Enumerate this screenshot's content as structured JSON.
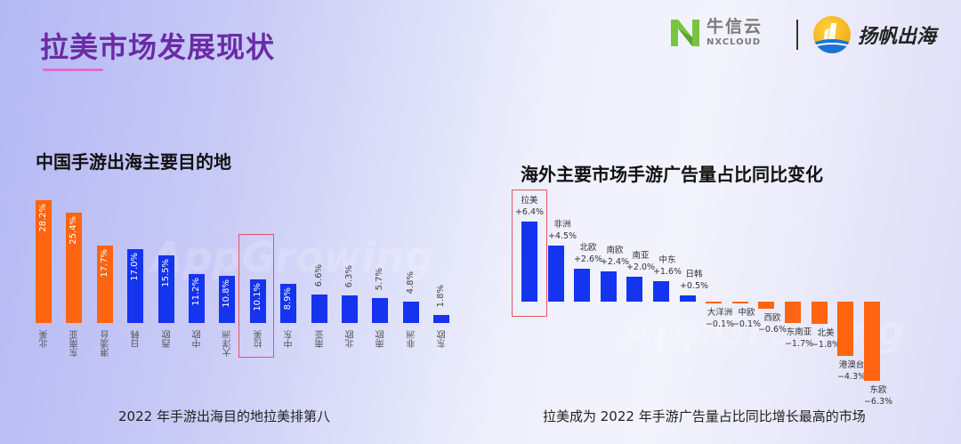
{
  "header": {
    "page_title": "拉美市场发展现状",
    "logos": [
      {
        "name": "牛信云",
        "subtitle": "NXCLOUD",
        "icon": "nxcloud-logo-icon"
      },
      {
        "name": "扬帆出海",
        "icon": "yangfan-logo-icon"
      }
    ]
  },
  "colors": {
    "orange": "#ff6410",
    "blue": "#1434f0",
    "title_purple": "#6a2ba5",
    "highlight_box": "#e8555e"
  },
  "watermark": "AppGrowing",
  "chart_data": [
    {
      "type": "bar",
      "title": "中国手游出海主要目的地",
      "caption": "2022 年手游出海目的地拉美排第八",
      "categories": [
        "北美",
        "东南亚",
        "港澳台",
        "日韩",
        "西欧",
        "中欧",
        "大洋洲",
        "拉美",
        "中东",
        "南亚",
        "北欧",
        "南欧",
        "非洲",
        "东欧"
      ],
      "values": [
        28.2,
        25.4,
        17.7,
        17.0,
        15.5,
        11.2,
        10.8,
        10.1,
        8.9,
        6.6,
        6.3,
        5.7,
        4.8,
        1.8
      ],
      "labels": [
        "28.2%",
        "25.4%",
        "17.7%",
        "17.0%",
        "15.5%",
        "11.2%",
        "10.8%",
        "10.1%",
        "8.9%",
        "6.6%",
        "6.3%",
        "5.7%",
        "4.8%",
        "1.8%"
      ],
      "bar_colors": [
        "orange",
        "orange",
        "orange",
        "blue",
        "blue",
        "blue",
        "blue",
        "blue",
        "blue",
        "blue",
        "blue",
        "blue",
        "blue",
        "blue"
      ],
      "highlight": "拉美",
      "xlabel": "",
      "ylabel": "",
      "ylim": [
        0,
        30
      ],
      "grid": false
    },
    {
      "type": "bar",
      "title": "海外主要市场手游广告量占比同比变化",
      "caption": "拉美成为 2022 年手游广告量占比同比增长最高的市场",
      "categories": [
        "拉美",
        "非洲",
        "北欧",
        "南欧",
        "南亚",
        "中东",
        "日韩",
        "大洋洲",
        "中欧",
        "西欧",
        "东南亚",
        "北美",
        "港澳台",
        "东欧"
      ],
      "values": [
        6.4,
        4.5,
        2.6,
        2.4,
        2.0,
        1.6,
        0.5,
        -0.1,
        -0.1,
        -0.6,
        -1.7,
        -1.8,
        -4.3,
        -6.3
      ],
      "labels": [
        "+6.4%",
        "+4.5%",
        "+2.6%",
        "+2.4%",
        "+2.0%",
        "+1.6%",
        "+0.5%",
        "−0.1%",
        "−0.1%",
        "−0.6%",
        "−1.7%",
        "−1.8%",
        "−4.3%",
        "−6.3%"
      ],
      "bar_colors": [
        "blue",
        "blue",
        "blue",
        "blue",
        "blue",
        "blue",
        "blue",
        "orange",
        "orange",
        "orange",
        "orange",
        "orange",
        "orange",
        "orange"
      ],
      "highlight": "拉美",
      "xlabel": "",
      "ylabel": "",
      "ylim": [
        -7,
        7
      ],
      "grid": false
    }
  ]
}
